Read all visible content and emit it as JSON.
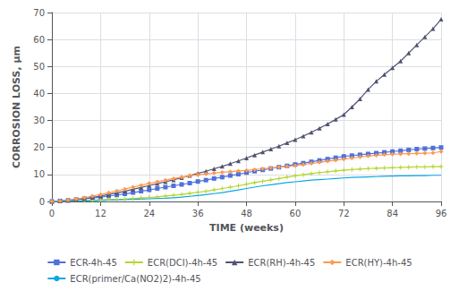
{
  "chart_data": {
    "type": "line",
    "x_label": "TIME (weeks)",
    "y_label": "CORROSION LOSS, μm",
    "xlim": [
      0,
      96
    ],
    "ylim": [
      0,
      70
    ],
    "xticks": [
      0,
      12,
      24,
      36,
      48,
      60,
      72,
      84,
      96
    ],
    "yticks": [
      0,
      10,
      20,
      30,
      40,
      50,
      60,
      70
    ],
    "grid": true,
    "legend": "bottom",
    "x": [
      0,
      2,
      4,
      6,
      8,
      10,
      12,
      14,
      16,
      18,
      20,
      22,
      24,
      26,
      28,
      30,
      32,
      34,
      36,
      38,
      40,
      42,
      44,
      46,
      48,
      50,
      52,
      54,
      56,
      58,
      60,
      62,
      64,
      66,
      68,
      70,
      72,
      74,
      76,
      78,
      80,
      82,
      84,
      86,
      88,
      90,
      92,
      94,
      96
    ],
    "series": [
      {
        "name": "ECR-4h-45",
        "marker": "square",
        "values": [
          0,
          0.2,
          0.4,
          0.7,
          1.0,
          1.3,
          1.6,
          2.0,
          2.4,
          2.8,
          3.3,
          3.8,
          4.3,
          4.8,
          5.3,
          5.8,
          6.3,
          6.8,
          7.4,
          7.9,
          8.5,
          9.0,
          9.6,
          10.1,
          10.7,
          11.2,
          11.7,
          12.2,
          12.7,
          13.2,
          13.7,
          14.2,
          14.7,
          15.2,
          15.7,
          16.2,
          16.7,
          17.0,
          17.3,
          17.6,
          17.9,
          18.2,
          18.5,
          18.8,
          19.1,
          19.4,
          19.6,
          19.8,
          20.0
        ]
      },
      {
        "name": "ECR(DCI)-4h-45",
        "marker": "plus",
        "values": [
          0,
          0.1,
          0.2,
          0.3,
          0.4,
          0.5,
          0.6,
          0.7,
          0.8,
          0.9,
          1.1,
          1.3,
          1.5,
          1.7,
          2.0,
          2.3,
          2.6,
          3.0,
          3.4,
          3.8,
          4.3,
          4.8,
          5.3,
          5.8,
          6.4,
          7.0,
          7.5,
          8.0,
          8.5,
          9.0,
          9.5,
          9.9,
          10.3,
          10.7,
          11.0,
          11.3,
          11.6,
          11.8,
          12.0,
          12.2,
          12.3,
          12.4,
          12.5,
          12.6,
          12.7,
          12.8,
          12.8,
          12.9,
          12.9
        ]
      },
      {
        "name": "ECR(RH)-4h-45",
        "marker": "triangle",
        "values": [
          0,
          0.2,
          0.4,
          0.7,
          1.1,
          1.5,
          2.0,
          2.6,
          3.2,
          3.8,
          4.5,
          5.2,
          5.9,
          6.6,
          7.3,
          8.0,
          8.8,
          9.6,
          10.4,
          11.2,
          12.1,
          13.0,
          14.0,
          15.0,
          16.1,
          17.2,
          18.3,
          19.4,
          20.5,
          21.7,
          22.9,
          24.2,
          25.6,
          27.1,
          28.7,
          30.4,
          32.2,
          35.0,
          38.0,
          41.5,
          44.5,
          47.0,
          49.5,
          52.0,
          55.0,
          58.0,
          61.0,
          64.0,
          67.5
        ]
      },
      {
        "name": "ECR(HY)-4h-45",
        "marker": "diamond",
        "values": [
          0,
          0.2,
          0.5,
          0.9,
          1.4,
          2.0,
          2.6,
          3.2,
          3.9,
          4.6,
          5.3,
          6.0,
          6.7,
          7.3,
          7.9,
          8.5,
          9.0,
          9.5,
          9.9,
          10.2,
          10.5,
          10.8,
          11.0,
          11.3,
          11.5,
          11.8,
          12.1,
          12.4,
          12.7,
          13.0,
          13.3,
          13.7,
          14.1,
          14.5,
          14.9,
          15.3,
          15.7,
          16.1,
          16.5,
          16.8,
          17.1,
          17.3,
          17.5,
          17.6,
          17.7,
          17.8,
          17.9,
          18.0,
          18.5
        ]
      },
      {
        "name": "ECR(primer/Ca(NO2)2)-4h-45",
        "marker": "none",
        "values": [
          0,
          0.05,
          0.1,
          0.15,
          0.2,
          0.3,
          0.4,
          0.5,
          0.6,
          0.7,
          0.8,
          0.9,
          1.0,
          1.1,
          1.2,
          1.4,
          1.6,
          1.9,
          2.2,
          2.5,
          2.9,
          3.3,
          3.8,
          4.3,
          4.8,
          5.3,
          5.8,
          6.2,
          6.6,
          7.0,
          7.3,
          7.6,
          7.9,
          8.1,
          8.3,
          8.5,
          8.7,
          8.9,
          9.0,
          9.1,
          9.2,
          9.3,
          9.4,
          9.5,
          9.5,
          9.6,
          9.6,
          9.7,
          9.7
        ]
      }
    ]
  }
}
